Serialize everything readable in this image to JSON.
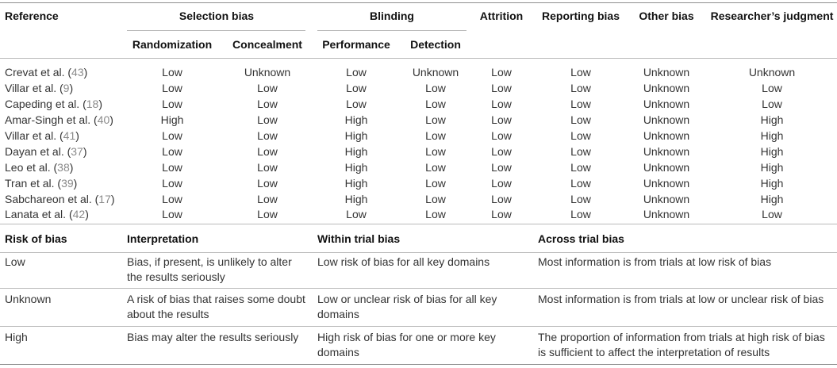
{
  "top_headers": {
    "reference": "Reference",
    "selection_bias": "Selection bias",
    "blinding": "Blinding",
    "attrition": "Attrition",
    "reporting_bias": "Reporting bias",
    "other_bias": "Other bias",
    "researchers_judgment": "Researcher’s judgment"
  },
  "sub_headers": {
    "randomization": "Randomization",
    "concealment": "Concealment",
    "performance": "Performance",
    "detection": "Detection"
  },
  "rows": [
    {
      "ref": "Crevat et al. (",
      "num": "43",
      "close": ")",
      "values": [
        "Low",
        "Unknown",
        "Low",
        "Unknown",
        "Low",
        "Low",
        "Unknown",
        "Unknown"
      ]
    },
    {
      "ref": "Villar et al. (",
      "num": "9",
      "close": ")",
      "values": [
        "Low",
        "Low",
        "Low",
        "Low",
        "Low",
        "Low",
        "Unknown",
        "Low"
      ]
    },
    {
      "ref": "Capeding et al. (",
      "num": "18",
      "close": ")",
      "values": [
        "Low",
        "Low",
        "Low",
        "Low",
        "Low",
        "Low",
        "Unknown",
        "Low"
      ]
    },
    {
      "ref": "Amar-Singh et al. (",
      "num": "40",
      "close": ")",
      "values": [
        "High",
        "Low",
        "High",
        "Low",
        "Low",
        "Low",
        "Unknown",
        "High"
      ]
    },
    {
      "ref": "Villar et al. (",
      "num": "41",
      "close": ")",
      "values": [
        "Low",
        "Low",
        "High",
        "Low",
        "Low",
        "Low",
        "Unknown",
        "High"
      ]
    },
    {
      "ref": "Dayan et al. (",
      "num": "37",
      "close": ")",
      "values": [
        "Low",
        "Low",
        "High",
        "Low",
        "Low",
        "Low",
        "Unknown",
        "High"
      ]
    },
    {
      "ref": "Leo et al. (",
      "num": "38",
      "close": ")",
      "values": [
        "Low",
        "Low",
        "High",
        "Low",
        "Low",
        "Low",
        "Unknown",
        "High"
      ]
    },
    {
      "ref": "Tran et al. (",
      "num": "39",
      "close": ")",
      "values": [
        "Low",
        "Low",
        "High",
        "Low",
        "Low",
        "Low",
        "Unknown",
        "High"
      ]
    },
    {
      "ref": "Sabchareon et al. (",
      "num": "17",
      "close": ")",
      "values": [
        "Low",
        "Low",
        "High",
        "Low",
        "Low",
        "Low",
        "Unknown",
        "High"
      ]
    },
    {
      "ref": "Lanata et al. (",
      "num": "42",
      "close": ")",
      "values": [
        "Low",
        "Low",
        "Low",
        "Low",
        "Low",
        "Low",
        "Unknown",
        "Low"
      ]
    }
  ],
  "legend_headers": {
    "risk": "Risk of bias",
    "interpretation": "Interpretation",
    "within": "Within trial bias",
    "across": "Across trial bias"
  },
  "legend_rows": [
    {
      "risk": "Low",
      "interpretation": "Bias, if present, is unlikely to alter the results seriously",
      "within": "Low risk of bias for all key domains",
      "across": "Most information is from trials at low risk of bias"
    },
    {
      "risk": "Unknown",
      "interpretation": "A risk of bias that raises some doubt about the results",
      "within": "Low or unclear risk of bias for all key domains",
      "across": "Most information is from trials at low or unclear risk of bias"
    },
    {
      "risk": "High",
      "interpretation": "Bias may alter the results seriously",
      "within": "High risk of bias for one or more key domains",
      "across": "The proportion of information from trials at high risk of bias is sufficient to affect the interpretation of results"
    }
  ]
}
